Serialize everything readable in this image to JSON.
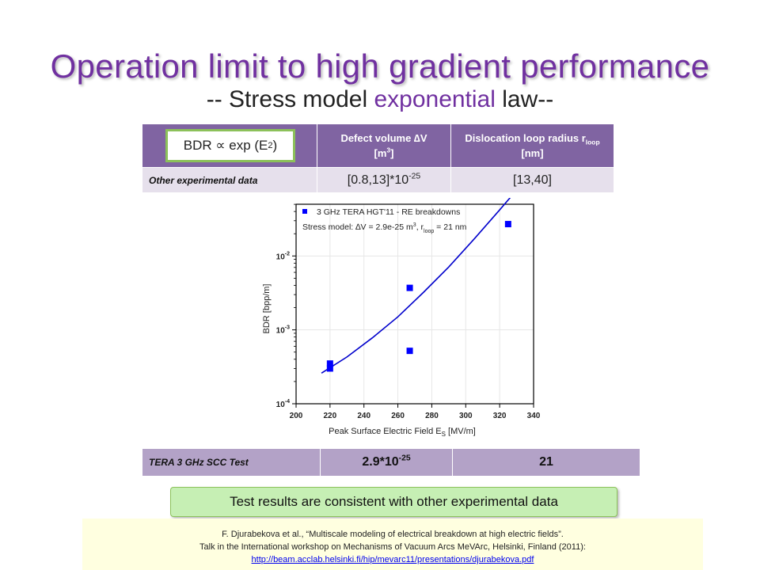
{
  "title": "Operation limit to high gradient performance",
  "subtitle": {
    "part1": "-- Stress model ",
    "part2": "exponential",
    "part3": " law--"
  },
  "bdr_box": {
    "text": "BDR ∝ exp (E",
    "sup": "2",
    "close": ")"
  },
  "table1": {
    "col1_line1": "Defect volume ∆V",
    "col1_line2": "[m",
    "col1_sup": "3",
    "col1_close": "]",
    "col2_line1": "Dislocation loop radius r",
    "col2_sub": "loop",
    "col2_line2": "[nm]",
    "row_label": "Other experimental data",
    "row_val1": "[0.8,13]*10",
    "row_val1_sup": "-25",
    "row_val2": "[13,40]"
  },
  "table2": {
    "label": "TERA 3 GHz SCC Test",
    "val1": "2.9*10",
    "val1_sup": "-25",
    "val2": "21"
  },
  "consistent_text": "Test results are consistent with other experimental data",
  "reference": {
    "line1": "F. Djurabekova et al., “Multiscale modeling of electrical breakdown at high electric fields”.",
    "line2": "Talk in the International workshop on Mechanisms of Vacuum Arcs MeVArc, Helsinki, Finland (2011):",
    "link": "http://beam.acclab.helsinki.fi/hip/mevarc11/presentations/djurabekova.pdf"
  },
  "chart_data": {
    "type": "scatter",
    "xlabel": "Peak Surface Electric Field E",
    "xlabel_sub": "S",
    "xlabel_unit": " [MV/m]",
    "ylabel": "BDR [bpp/m]",
    "xlim": [
      200,
      340
    ],
    "ylim_log10": [
      -4,
      -1.3
    ],
    "x_ticks": [
      200,
      220,
      240,
      260,
      280,
      300,
      320,
      340
    ],
    "y_ticks": [
      {
        "exp": -4,
        "base": "10",
        "sup": "-4"
      },
      {
        "exp": -3,
        "base": "10",
        "sup": "-3"
      },
      {
        "exp": -2,
        "base": "10",
        "sup": "-2"
      }
    ],
    "legend": {
      "series_label": "3 GHz TERA HGT'11 - RE breakdowns",
      "fit_label_a": "Stress model: ∆V = 2.9e-25 m",
      "fit_label_sup": "3",
      "fit_label_b": ", r",
      "fit_label_sub": "loop",
      "fit_label_c": " = 21 nm"
    },
    "points": [
      {
        "x": 220,
        "y": 0.00035
      },
      {
        "x": 220,
        "y": 0.0003
      },
      {
        "x": 267,
        "y": 0.0037
      },
      {
        "x": 267,
        "y": 0.00052
      },
      {
        "x": 325,
        "y": 0.027
      }
    ],
    "fit_curve": [
      {
        "x": 215,
        "y": 0.00026
      },
      {
        "x": 230,
        "y": 0.00043
      },
      {
        "x": 245,
        "y": 0.00078
      },
      {
        "x": 260,
        "y": 0.0015
      },
      {
        "x": 275,
        "y": 0.0032
      },
      {
        "x": 290,
        "y": 0.0071
      },
      {
        "x": 305,
        "y": 0.017
      },
      {
        "x": 320,
        "y": 0.042
      },
      {
        "x": 330,
        "y": 0.078
      }
    ],
    "colors": {
      "series": "#0000ff",
      "fit": "#0000cc",
      "grid": "#e6e6e6"
    },
    "grid": true,
    "legend_position": "top-left"
  }
}
